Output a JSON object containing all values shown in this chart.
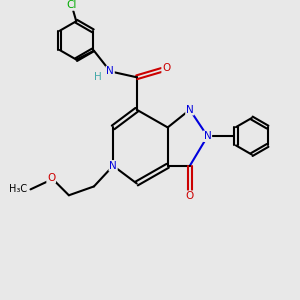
{
  "bg_color": "#e8e8e8",
  "bond_color": "#000000",
  "n_color": "#0000dd",
  "o_color": "#cc0000",
  "cl_color": "#00aa00",
  "h_color": "#44aaaa",
  "lw": 1.5,
  "fs": 7.5,
  "figsize": [
    3.0,
    3.0
  ],
  "dpi": 100,
  "xlim": [
    0,
    10
  ],
  "ylim": [
    0,
    10
  ]
}
